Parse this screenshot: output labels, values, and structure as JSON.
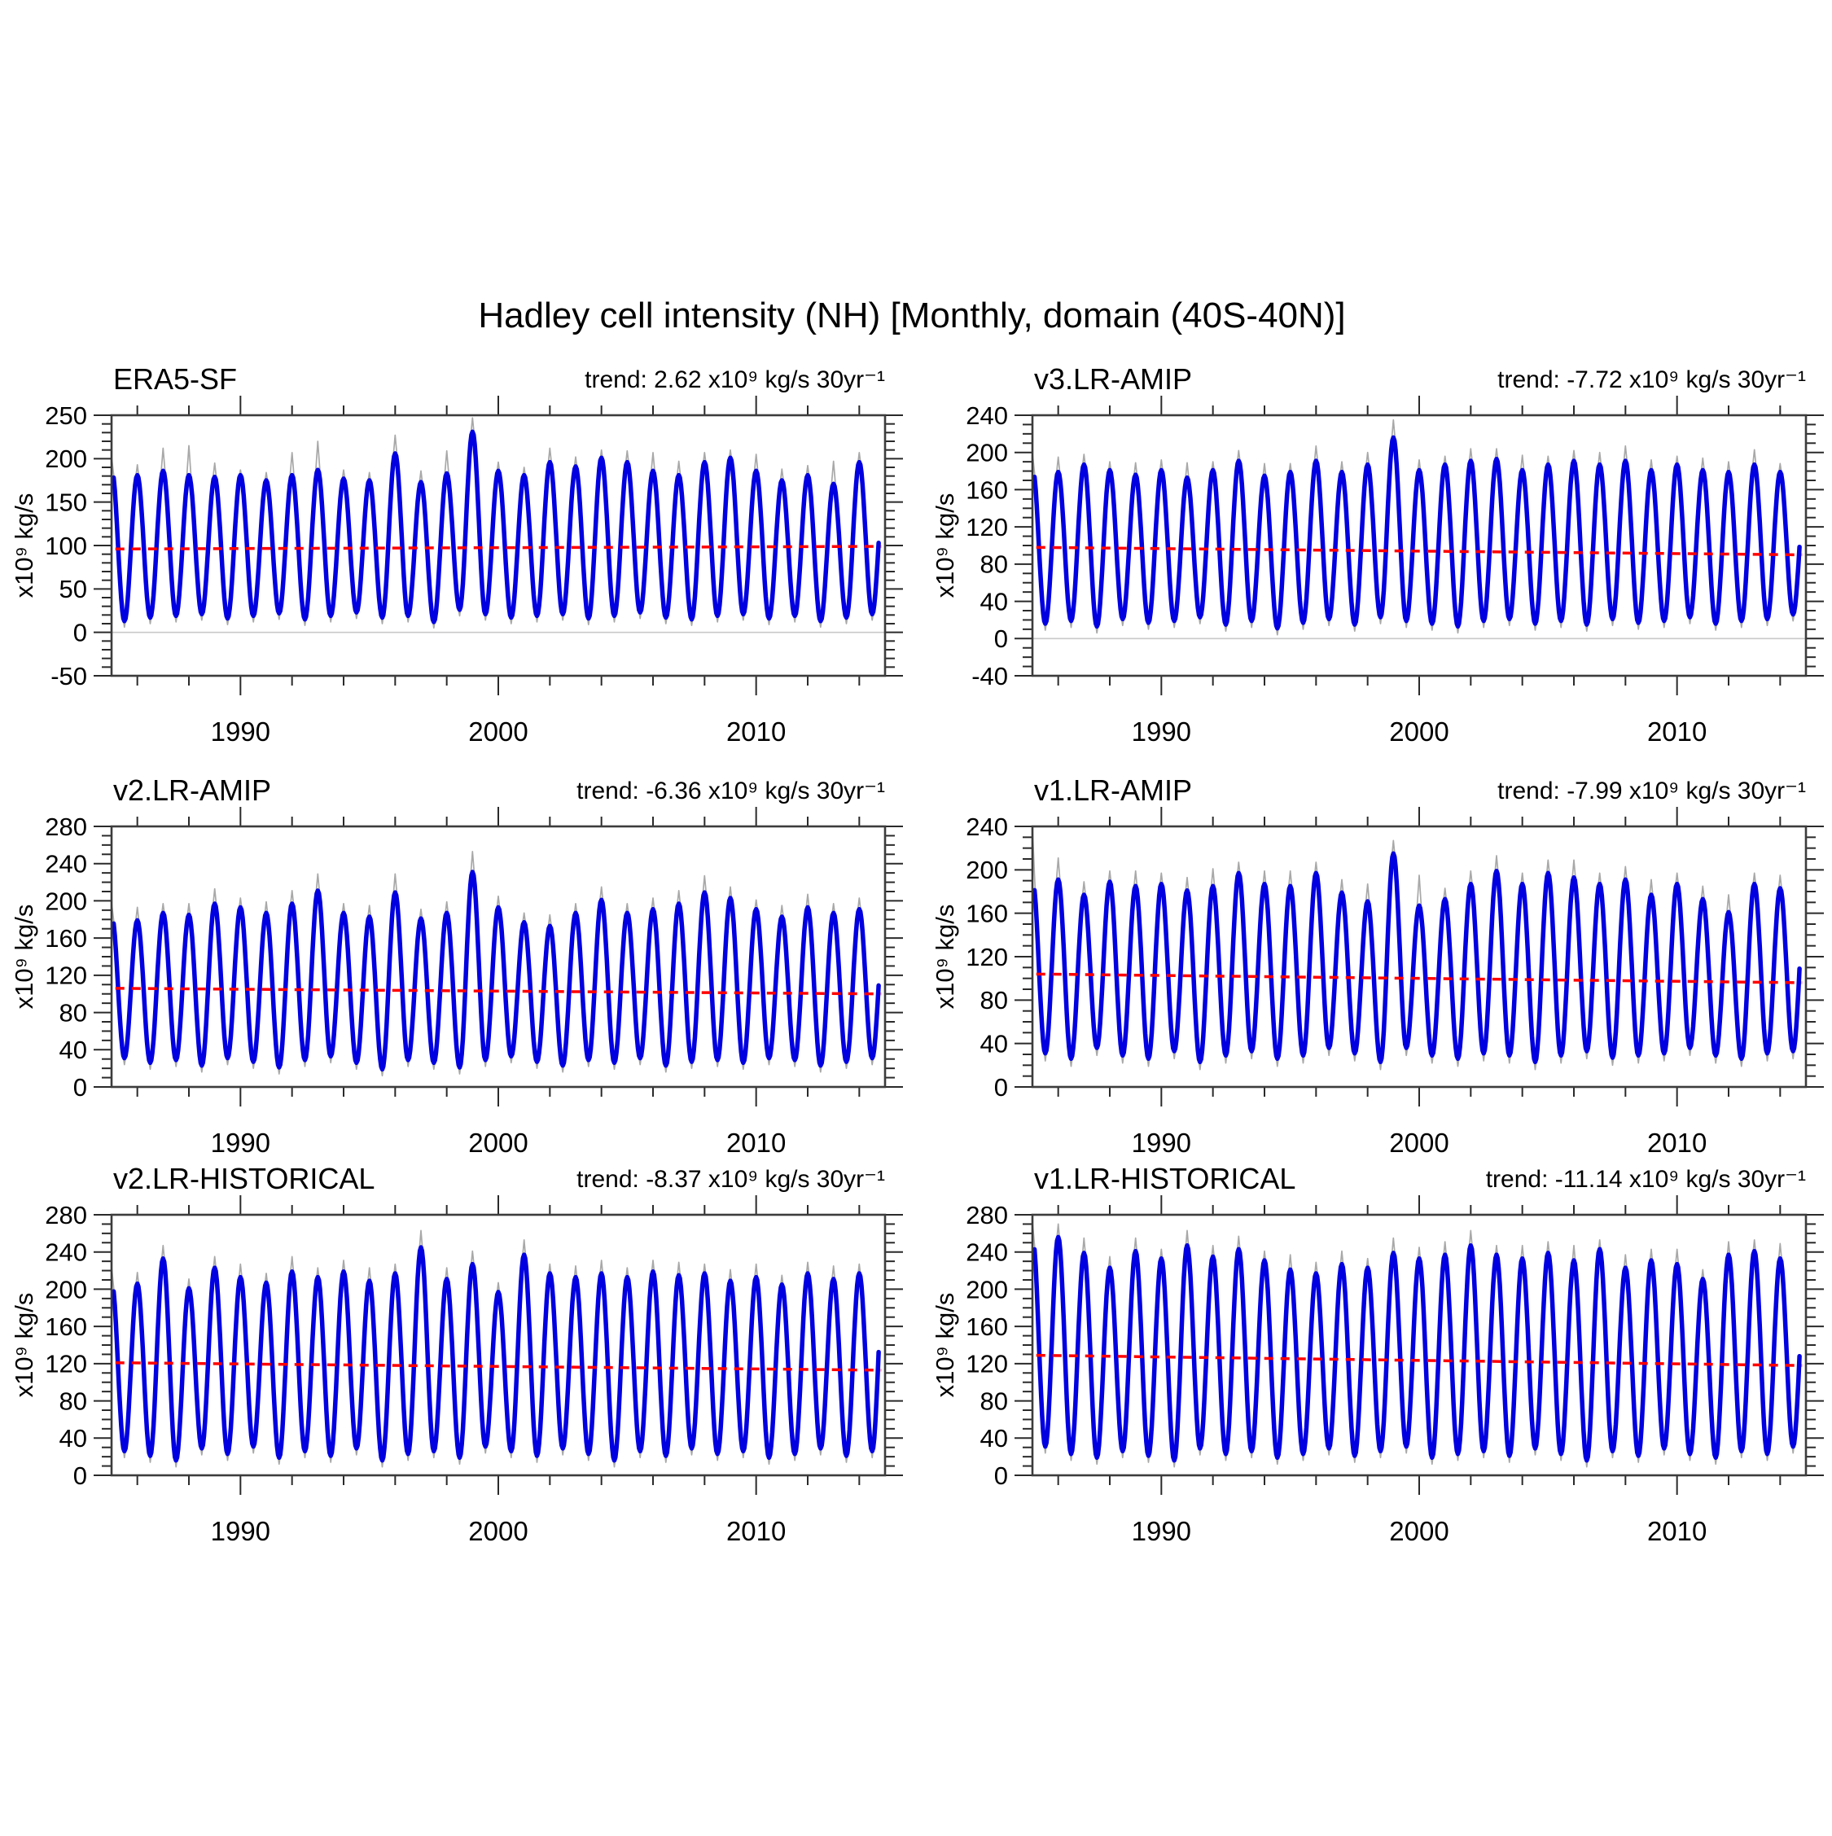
{
  "figure": {
    "title": "Hadley cell intensity (NH) [Monthly, domain (40S-40N)]"
  },
  "style": {
    "smooth_line_color": "#0000e0",
    "raw_line_color": "#a8a8a8",
    "mean_line_color": "#ff0000",
    "axis_color": "#3c3c3c",
    "tick_color": "#2a2a2a",
    "zero_line_color": "#c9c9c9"
  },
  "chart_data": [
    {
      "type": "line",
      "title": "ERA5-SF",
      "trend_label": "trend: 2.62 x10⁹ kg/s 30yr⁻¹",
      "trend_value_per_30yr": 2.62,
      "ylabel": "x10⁹ kg/s",
      "ylim": [
        -50,
        250
      ],
      "yticks": [
        -50,
        0,
        50,
        100,
        150,
        200,
        250
      ],
      "ytick_minor_step": 10,
      "xlim": [
        1985,
        2015
      ],
      "xticks": [
        1990,
        2000,
        2010
      ],
      "xtick_minor_step": 2,
      "start_year": 1985,
      "n_years": 30,
      "mean_line": {
        "start": 96,
        "end": 99
      },
      "series": {
        "seasonal_peaks_by_year": [
          181,
          186,
          181,
          179,
          181,
          175,
          181,
          187,
          177,
          175,
          206,
          173,
          183,
          231,
          186,
          181,
          196,
          191,
          201,
          196,
          186,
          181,
          196,
          201,
          186,
          175,
          181,
          171,
          196,
          185
        ],
        "seasonal_troughs_by_year": [
          13,
          17,
          19,
          21,
          16,
          19,
          22,
          15,
          19,
          23,
          17,
          19,
          12,
          26,
          21,
          17,
          19,
          21,
          16,
          19,
          23,
          17,
          15,
          19,
          21,
          16,
          19,
          13,
          17,
          21
        ],
        "raw_peak_overshoot": [
          12,
          26,
          34,
          16,
          6,
          9,
          26,
          33,
          10,
          9,
          21,
          13,
          26,
          16,
          10,
          9,
          16,
          11,
          9,
          13,
          21,
          16,
          11,
          9,
          19,
          13,
          11,
          26,
          11,
          16
        ],
        "pre_peak": 190,
        "pre_overshoot": 12
      }
    },
    {
      "type": "line",
      "title": "v3.LR-AMIP",
      "trend_label": "trend: -7.72 x10⁹ kg/s 30yr⁻¹",
      "trend_value_per_30yr": -7.72,
      "ylabel": "x10⁹ kg/s",
      "ylim": [
        -40,
        240
      ],
      "yticks": [
        -40,
        0,
        40,
        80,
        120,
        160,
        200,
        240
      ],
      "ytick_minor_step": 10,
      "xlim": [
        1985,
        2015
      ],
      "xticks": [
        1990,
        2000,
        2010
      ],
      "xtick_minor_step": 2,
      "start_year": 1985,
      "n_years": 30,
      "mean_line": {
        "start": 98,
        "end": 90
      },
      "series": {
        "seasonal_peaks_by_year": [
          179,
          187,
          181,
          176,
          181,
          173,
          181,
          191,
          175,
          179,
          191,
          179,
          187,
          216,
          181,
          187,
          191,
          193,
          181,
          187,
          191,
          187,
          191,
          181,
          187,
          181,
          179,
          187,
          179,
          171
        ],
        "seasonal_troughs_by_year": [
          16,
          19,
          13,
          21,
          17,
          19,
          23,
          15,
          19,
          11,
          17,
          21,
          15,
          23,
          19,
          16,
          13,
          19,
          21,
          16,
          19,
          15,
          21,
          17,
          19,
          23,
          16,
          19,
          21,
          26
        ],
        "raw_peak_overshoot": [
          16,
          11,
          9,
          13,
          11,
          16,
          9,
          11,
          13,
          9,
          16,
          11,
          13,
          19,
          11,
          9,
          13,
          11,
          16,
          9,
          11,
          13,
          16,
          11,
          9,
          13,
          11,
          16,
          9,
          21
        ],
        "pre_peak": 185,
        "pre_overshoot": 14
      }
    },
    {
      "type": "line",
      "title": "v2.LR-AMIP",
      "trend_label": "trend: -6.36 x10⁹ kg/s 30yr⁻¹",
      "trend_value_per_30yr": -6.36,
      "ylabel": "x10⁹ kg/s",
      "ylim": [
        0,
        280
      ],
      "yticks": [
        0,
        40,
        80,
        120,
        160,
        200,
        240,
        280
      ],
      "ytick_minor_step": 10,
      "xlim": [
        1985,
        2015
      ],
      "xticks": [
        1990,
        2000,
        2010
      ],
      "xtick_minor_step": 2,
      "start_year": 1985,
      "n_years": 30,
      "mean_line": {
        "start": 106,
        "end": 100
      },
      "series": {
        "seasonal_peaks_by_year": [
          179,
          187,
          185,
          197,
          193,
          187,
          197,
          211,
          187,
          183,
          209,
          181,
          187,
          231,
          193,
          177,
          173,
          187,
          201,
          187,
          191,
          197,
          209,
          203,
          191,
          183,
          193,
          187,
          191,
          187
        ],
        "seasonal_troughs_by_year": [
          31,
          26,
          29,
          23,
          31,
          27,
          21,
          29,
          33,
          26,
          19,
          29,
          26,
          21,
          29,
          33,
          27,
          23,
          29,
          26,
          31,
          23,
          27,
          29,
          26,
          31,
          29,
          23,
          27,
          31
        ],
        "raw_peak_overshoot": [
          14,
          10,
          12,
          16,
          10,
          12,
          14,
          18,
          10,
          12,
          20,
          10,
          12,
          22,
          12,
          10,
          12,
          10,
          14,
          10,
          12,
          14,
          18,
          12,
          10,
          12,
          14,
          10,
          12,
          14
        ],
        "pre_peak": 186,
        "pre_overshoot": 12
      }
    },
    {
      "type": "line",
      "title": "v1.LR-AMIP",
      "trend_label": "trend: -7.99 x10⁹ kg/s 30yr⁻¹",
      "trend_value_per_30yr": -7.99,
      "ylabel": "x10⁹ kg/s",
      "ylim": [
        0,
        240
      ],
      "yticks": [
        0,
        40,
        80,
        120,
        160,
        200,
        240
      ],
      "ytick_minor_step": 10,
      "xlim": [
        1985,
        2015
      ],
      "xticks": [
        1990,
        2000,
        2010
      ],
      "xtick_minor_step": 2,
      "start_year": 1985,
      "n_years": 30,
      "mean_line": {
        "start": 104,
        "end": 96
      },
      "series": {
        "seasonal_peaks_by_year": [
          191,
          177,
          189,
          185,
          187,
          181,
          185,
          197,
          187,
          185,
          197,
          179,
          171,
          215,
          167,
          173,
          187,
          199,
          187,
          197,
          193,
          187,
          191,
          177,
          187,
          173,
          161,
          187,
          183,
          185
        ],
        "seasonal_troughs_by_year": [
          31,
          26,
          36,
          29,
          26,
          33,
          23,
          29,
          33,
          26,
          29,
          36,
          31,
          23,
          36,
          29,
          26,
          31,
          29,
          23,
          29,
          33,
          27,
          29,
          31,
          36,
          29,
          26,
          31,
          33
        ],
        "raw_peak_overshoot": [
          20,
          12,
          10,
          14,
          10,
          12,
          16,
          10,
          12,
          14,
          10,
          12,
          16,
          12,
          28,
          10,
          12,
          14,
          10,
          12,
          16,
          10,
          12,
          14,
          10,
          12,
          16,
          10,
          12,
          14
        ],
        "pre_peak": 192,
        "pre_overshoot": 46
      }
    },
    {
      "type": "line",
      "title": "v2.LR-HISTORICAL",
      "trend_label": "trend: -8.37 x10⁹ kg/s 30yr⁻¹",
      "trend_value_per_30yr": -8.37,
      "ylabel": "x10⁹ kg/s",
      "ylim": [
        0,
        280
      ],
      "yticks": [
        0,
        40,
        80,
        120,
        160,
        200,
        240,
        280
      ],
      "ytick_minor_step": 10,
      "xlim": [
        1985,
        2015
      ],
      "xticks": [
        1990,
        2000,
        2010
      ],
      "xtick_minor_step": 2,
      "start_year": 1985,
      "n_years": 30,
      "mean_line": {
        "start": 121,
        "end": 113
      },
      "series": {
        "seasonal_peaks_by_year": [
          206,
          233,
          201,
          223,
          213,
          207,
          219,
          213,
          219,
          209,
          217,
          245,
          211,
          227,
          197,
          237,
          217,
          213,
          217,
          213,
          219,
          215,
          217,
          209,
          213,
          205,
          217,
          211,
          217,
          239
        ],
        "seasonal_troughs_by_year": [
          26,
          21,
          16,
          29,
          23,
          31,
          19,
          26,
          21,
          29,
          16,
          23,
          26,
          19,
          31,
          26,
          21,
          29,
          23,
          16,
          26,
          21,
          29,
          23,
          26,
          19,
          23,
          29,
          21,
          26
        ],
        "raw_peak_overshoot": [
          12,
          14,
          10,
          12,
          14,
          10,
          16,
          10,
          12,
          14,
          10,
          18,
          12,
          14,
          10,
          16,
          10,
          12,
          14,
          10,
          12,
          14,
          10,
          12,
          14,
          10,
          12,
          14,
          10,
          16
        ],
        "pre_peak": 210,
        "pre_overshoot": 14
      }
    },
    {
      "type": "line",
      "title": "v1.LR-HISTORICAL",
      "trend_label": "trend: -11.14 x10⁹ kg/s 30yr⁻¹",
      "trend_value_per_30yr": -11.14,
      "ylabel": "x10⁹ kg/s",
      "ylim": [
        0,
        280
      ],
      "yticks": [
        0,
        40,
        80,
        120,
        160,
        200,
        240,
        280
      ],
      "ytick_minor_step": 10,
      "xlim": [
        1985,
        2015
      ],
      "xticks": [
        1990,
        2000,
        2010
      ],
      "xtick_minor_step": 2,
      "start_year": 1985,
      "n_years": 30,
      "mean_line": {
        "start": 129,
        "end": 118
      },
      "series": {
        "seasonal_peaks_by_year": [
          256,
          239,
          223,
          241,
          233,
          247,
          235,
          243,
          231,
          221,
          217,
          227,
          223,
          239,
          233,
          237,
          247,
          237,
          233,
          239,
          231,
          243,
          223,
          231,
          227,
          211,
          237,
          241,
          233,
          225
        ],
        "seasonal_troughs_by_year": [
          31,
          23,
          19,
          26,
          21,
          16,
          29,
          23,
          26,
          19,
          23,
          29,
          21,
          26,
          31,
          19,
          23,
          26,
          21,
          29,
          23,
          16,
          26,
          21,
          29,
          23,
          19,
          26,
          23,
          31
        ],
        "raw_peak_overshoot": [
          14,
          16,
          12,
          14,
          10,
          16,
          12,
          14,
          10,
          16,
          12,
          14,
          10,
          16,
          12,
          14,
          16,
          10,
          14,
          12,
          16,
          10,
          14,
          12,
          16,
          10,
          14,
          12,
          16,
          12
        ],
        "pre_peak": 258,
        "pre_overshoot": 14
      }
    }
  ]
}
